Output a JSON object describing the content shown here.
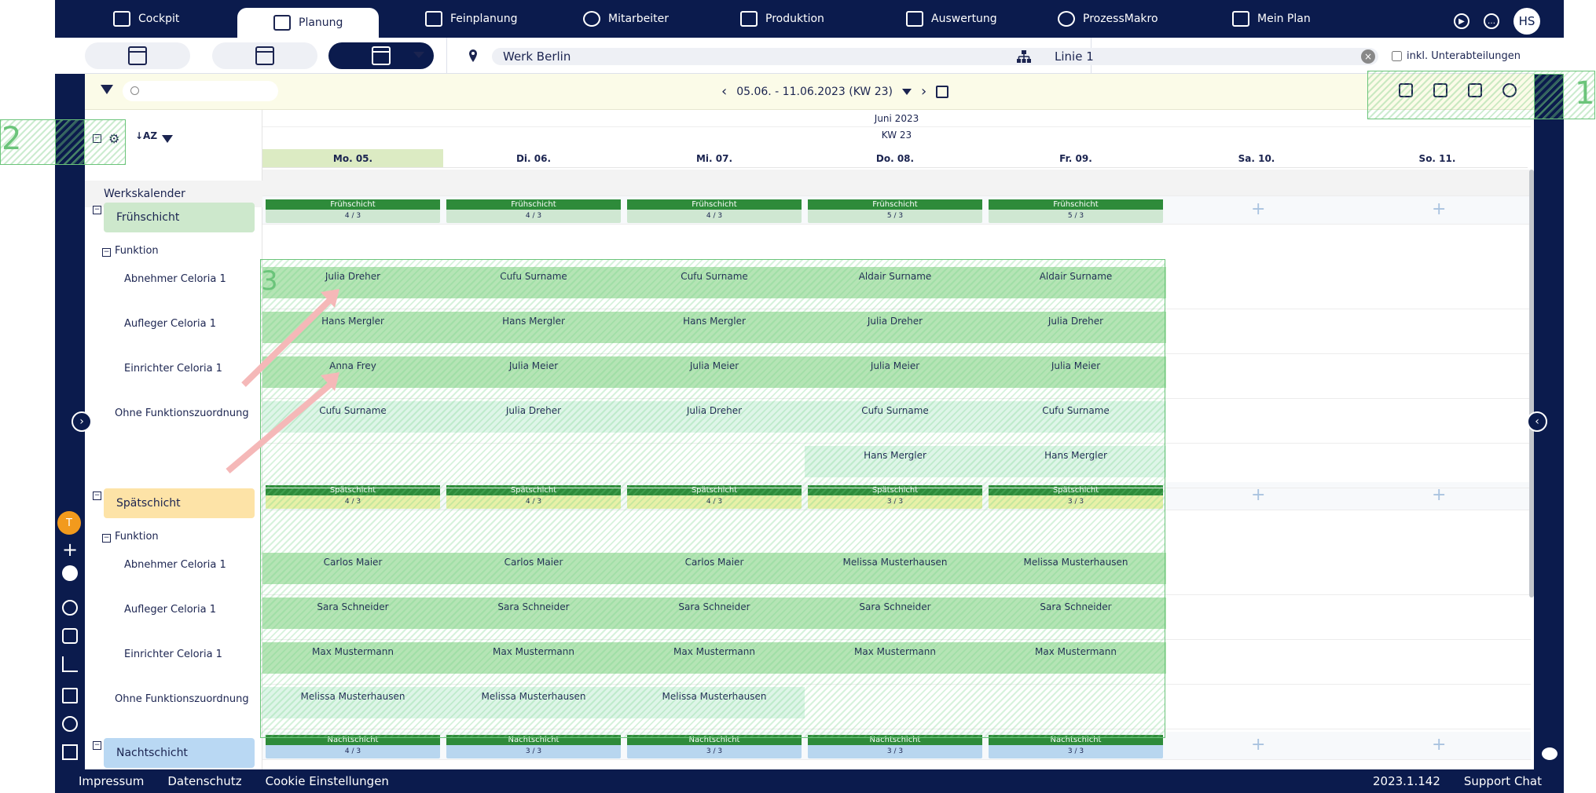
{
  "nav": {
    "tabs": [
      {
        "label": "Cockpit",
        "icon": "cockpit-icon"
      },
      {
        "label": "Planung",
        "icon": "planning-icon"
      },
      {
        "label": "Feinplanung",
        "icon": "calendar-icon"
      },
      {
        "label": "Mitarbeiter",
        "icon": "employees-icon"
      },
      {
        "label": "Produktion",
        "icon": "production-icon"
      },
      {
        "label": "Auswertung",
        "icon": "chart-icon"
      },
      {
        "label": "ProzessMakro",
        "icon": "play-icon"
      },
      {
        "label": "Mein Plan",
        "icon": "my-plan-icon"
      }
    ],
    "user_initials": "HS"
  },
  "filters": {
    "location": "Werk Berlin",
    "line": "Linie 1",
    "include_subdivisions": "inkl. Unterabteilungen"
  },
  "toolbar": {
    "date_range": "05.06. - 11.06.2023 (KW 23)"
  },
  "calendar": {
    "month": "Juni 2023",
    "week": "KW 23",
    "days": [
      "Mo. 05.",
      "Di. 06.",
      "Mi. 07.",
      "Do. 08.",
      "Fr. 09.",
      "Sa. 10.",
      "So. 11."
    ]
  },
  "annotations": [
    "1",
    "2",
    "3"
  ],
  "left": {
    "werkskalender": "Werkskalender",
    "funktion": "Funktion",
    "shifts": [
      {
        "name": "Frühschicht",
        "color": "#cde8cc",
        "bar_color": "#2e8b3a",
        "bar_bg": "#cfe7d2"
      },
      {
        "name": "Spätschicht",
        "color": "#fde3a7",
        "bar_color": "#2e8b3a",
        "bar_bg": "#e8f0a8"
      },
      {
        "name": "Nachtschicht",
        "color": "#b9d8f3",
        "bar_color": "#2e8b3a",
        "bar_bg": "#b8d6ef"
      }
    ],
    "roles": [
      "Abnehmer Celoria 1",
      "Aufleger Celoria 1",
      "Einrichter Celoria 1",
      "Ohne Funktionszuordnung"
    ]
  },
  "shift_bars": {
    "early": {
      "label": "Frühschicht",
      "counts": [
        "4 / 3",
        "4 / 3",
        "4 / 3",
        "5 / 3",
        "5 / 3"
      ]
    },
    "late": {
      "label": "Spätschicht",
      "counts": [
        "4 / 3",
        "4 / 3",
        "4 / 3",
        "3 / 3",
        "3 / 3"
      ]
    },
    "night": {
      "label": "Nachtschicht",
      "counts": [
        "4 / 3",
        "3 / 3",
        "3 / 3",
        "3 / 3",
        "3 / 3"
      ]
    }
  },
  "early_assignments": {
    "abnehmer": [
      "Julia Dreher",
      "Cufu Surname",
      "Cufu Surname",
      "Aldair Surname",
      "Aldair Surname"
    ],
    "aufleger": [
      "Hans Mergler",
      "Hans Mergler",
      "Hans Mergler",
      "Julia Dreher",
      "Julia Dreher"
    ],
    "einrichter": [
      "Anna Frey",
      "Julia Meier",
      "Julia Meier",
      "Julia Meier",
      "Julia Meier"
    ],
    "ohne": [
      "Cufu Surname",
      "Julia Dreher",
      "Julia Dreher",
      "Cufu Surname",
      "Cufu Surname"
    ],
    "ohne2": [
      "",
      "",
      "",
      "Hans Mergler",
      "Hans Mergler"
    ]
  },
  "late_assignments": {
    "abnehmer": [
      "Carlos Maier",
      "Carlos Maier",
      "Carlos Maier",
      "Melissa Musterhausen",
      "Melissa Musterhausen"
    ],
    "aufleger": [
      "Sara Schneider",
      "Sara Schneider",
      "Sara Schneider",
      "Sara Schneider",
      "Sara Schneider"
    ],
    "einrichter": [
      "Max Mustermann",
      "Max Mustermann",
      "Max Mustermann",
      "Max Mustermann",
      "Max Mustermann"
    ],
    "ohne": [
      "Melissa Musterhausen",
      "Melissa Musterhausen",
      "Melissa Musterhausen",
      "",
      ""
    ]
  },
  "sidebar_badge": "T",
  "footer": {
    "links": [
      "Impressum",
      "Datenschutz",
      "Cookie Einstellungen"
    ],
    "version": "2023.1.142",
    "support": "Support Chat"
  }
}
